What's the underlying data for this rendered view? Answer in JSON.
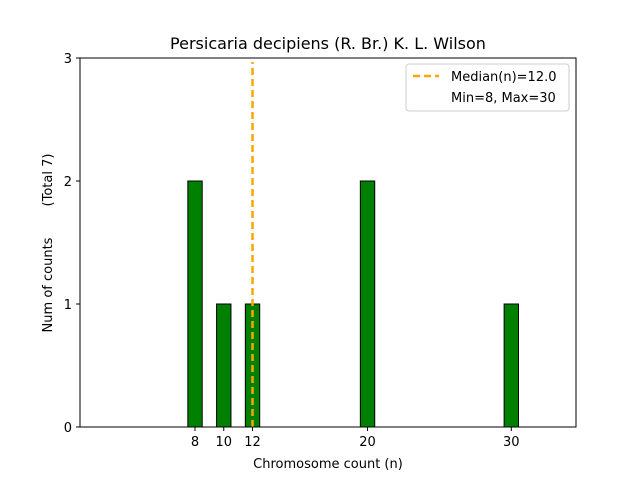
{
  "chart_data": {
    "type": "bar",
    "title": "Persicaria decipiens (R. Br.) K. L. Wilson",
    "xlabel": "Chromosome count (n)",
    "ylabel": "Num of counts",
    "ylabel_total": "(Total 7)",
    "x": [
      8,
      10,
      12,
      20,
      30
    ],
    "values": [
      2,
      1,
      1,
      2,
      1
    ],
    "x_ticks": [
      8,
      10,
      12,
      20,
      30
    ],
    "y_ticks": [
      0,
      1,
      2,
      3
    ],
    "xlim": [
      0,
      34.5
    ],
    "ylim": [
      0,
      3
    ],
    "bar_width": 1,
    "median": 12.0,
    "legend": {
      "median_label": "Median(n)=12.0",
      "minmax_label": "Min=8, Max=30",
      "placement": "upper-right"
    },
    "colors": {
      "bar": "#008000",
      "bar_edge": "#000000",
      "median_line": "#FFA500"
    },
    "grid": false
  }
}
